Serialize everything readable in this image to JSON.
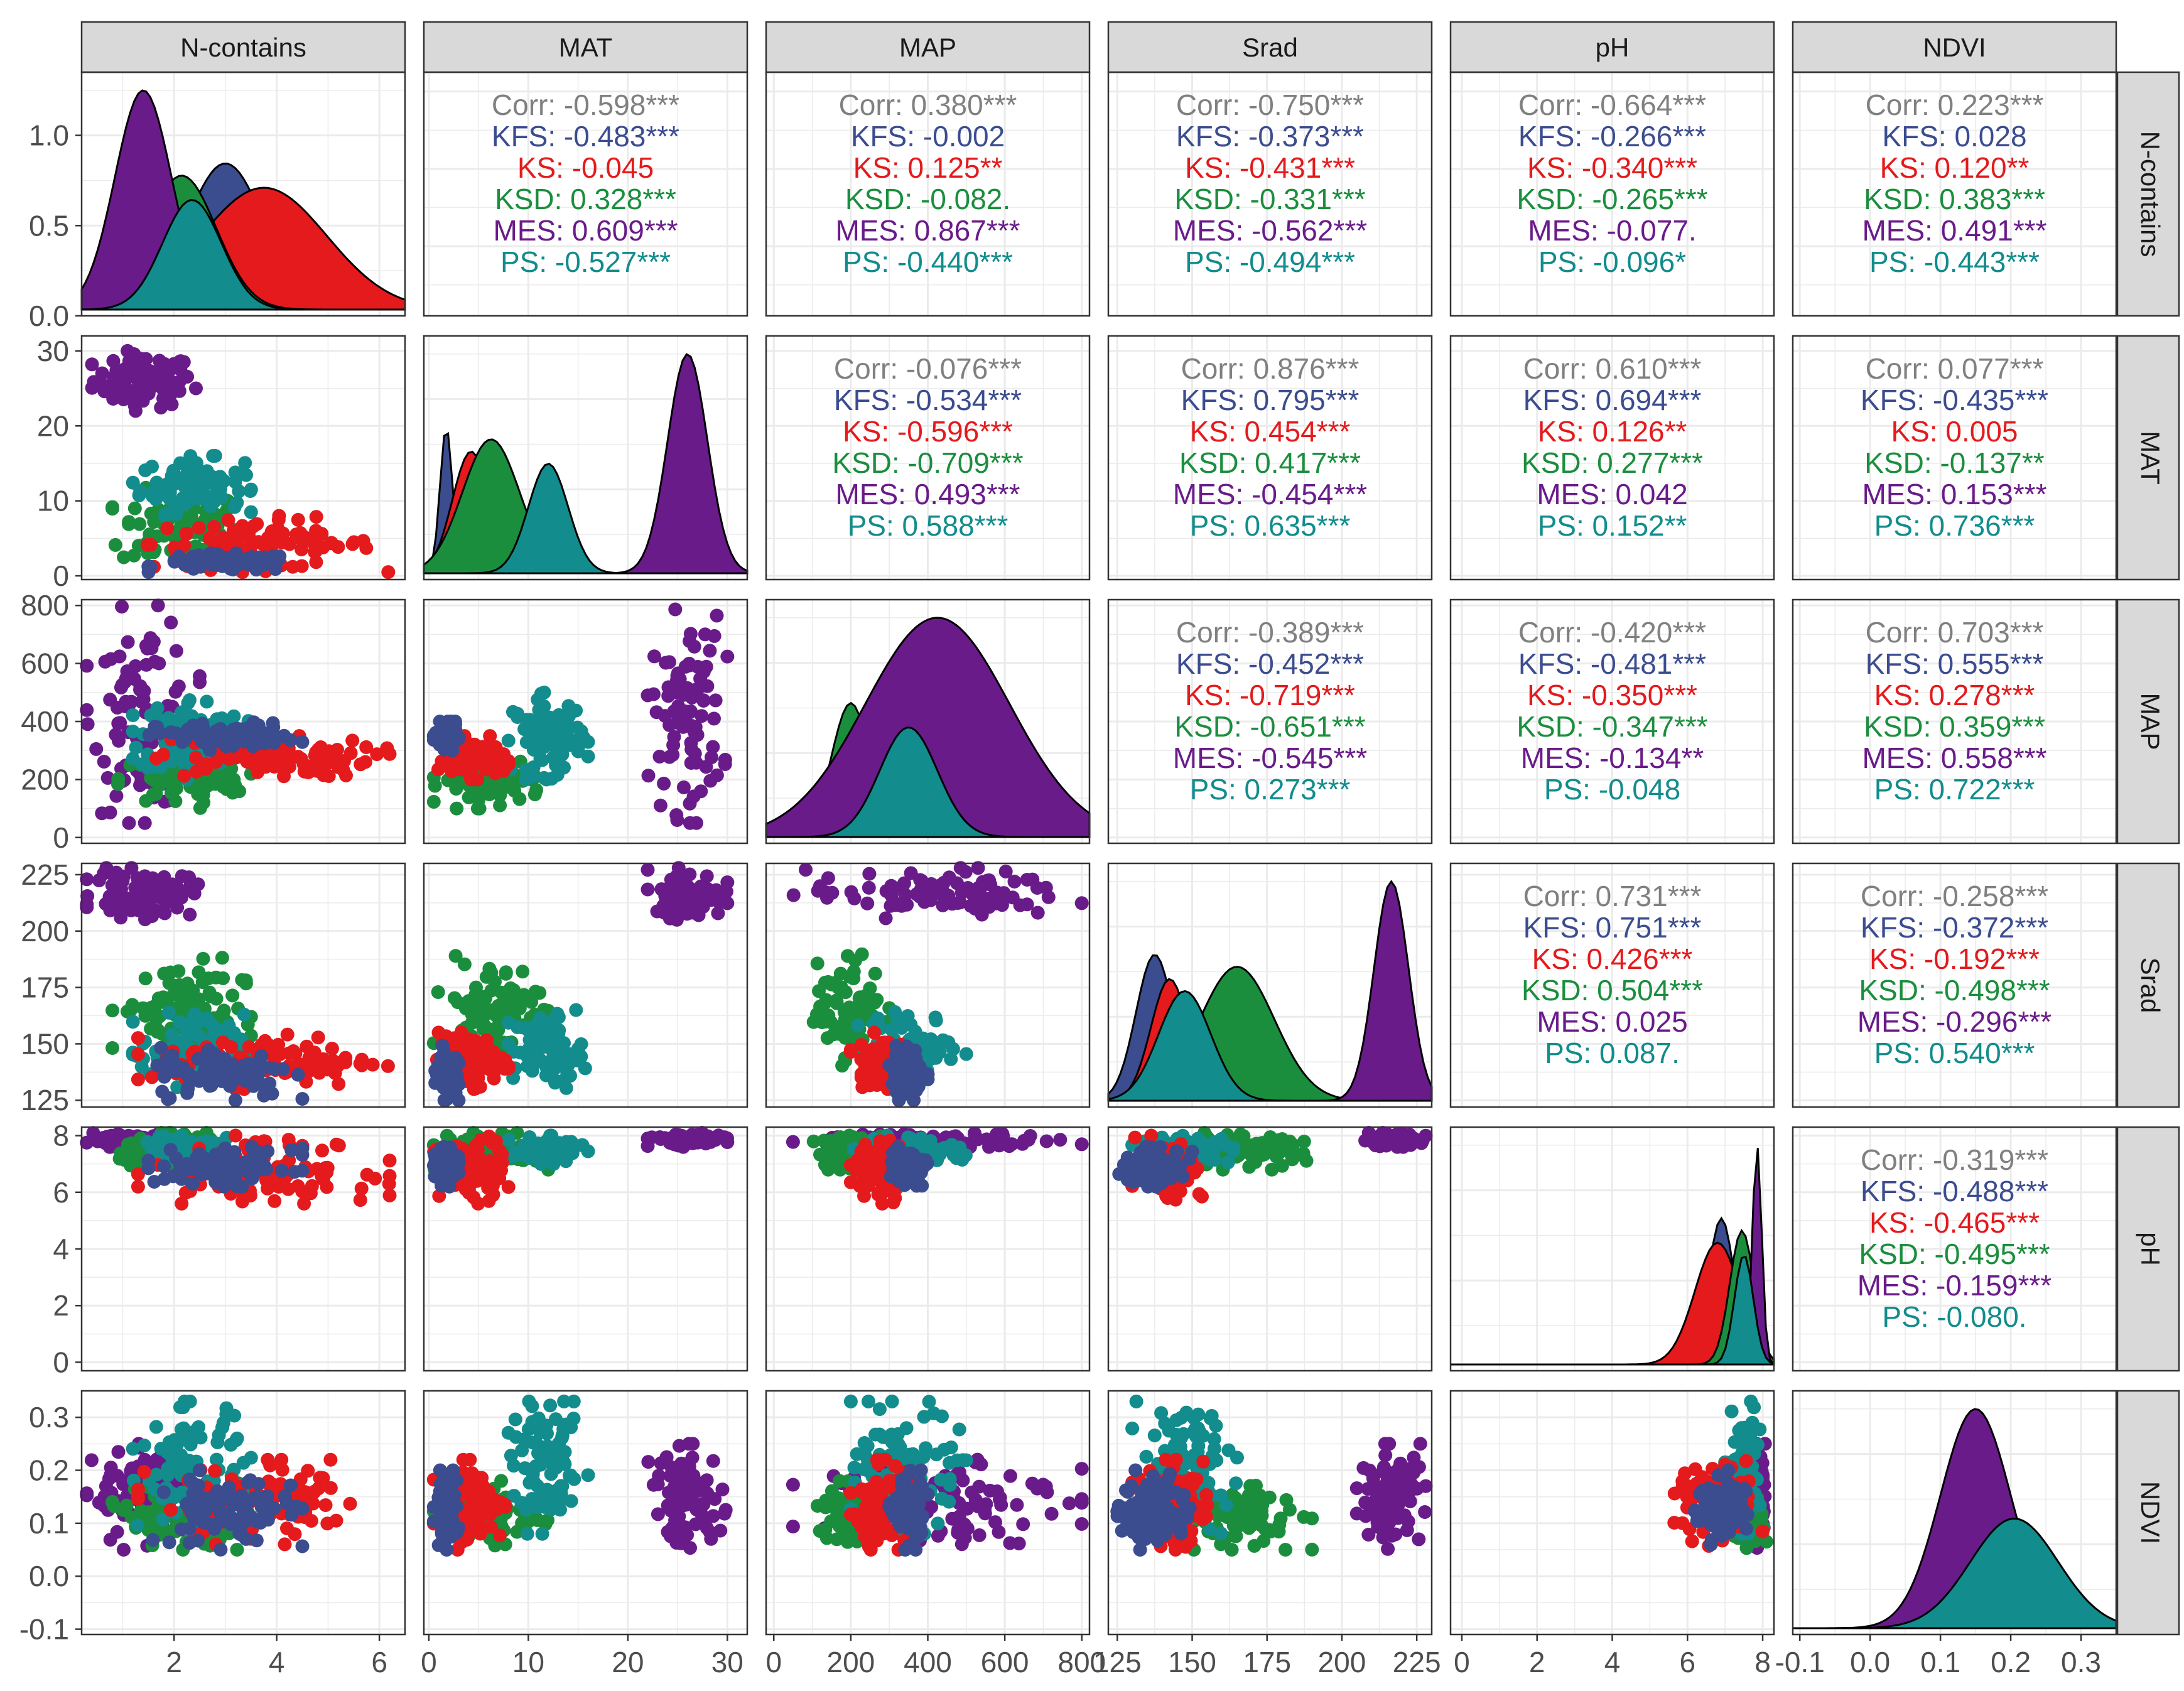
{
  "chart_data": {
    "type": "scatter",
    "colors": {
      "Corr": "#808080",
      "KFS": "#3B4C8F",
      "KS": "#E41A1C",
      "KSD": "#1B8E3E",
      "MES": "#6A1B8A",
      "PS": "#128C8C"
    },
    "groups": [
      "KFS",
      "KS",
      "KSD",
      "MES",
      "PS"
    ],
    "variables": [
      {
        "name": "N-contains",
        "range": [
          0.2,
          6.5
        ],
        "ticks": [
          2,
          4,
          6
        ],
        "tick_labels": [
          "2",
          "4",
          "6"
        ],
        "groups": {
          "KFS": [
            1.5,
            4.5
          ],
          "KS": [
            1.3,
            6.2
          ],
          "KSD": [
            0.8,
            3.5
          ],
          "MES": [
            0.3,
            2.5
          ],
          "PS": [
            1.2,
            3.5
          ]
        }
      },
      {
        "name": "MAT",
        "range": [
          -0.5,
          32
        ],
        "ticks": [
          0,
          10,
          20,
          30
        ],
        "tick_labels": [
          "0",
          "10",
          "20",
          "30"
        ],
        "groups": {
          "KFS": [
            0.5,
            3
          ],
          "KS": [
            0.5,
            8
          ],
          "KSD": [
            0.5,
            12
          ],
          "MES": [
            22,
            30
          ],
          "PS": [
            8,
            16
          ]
        }
      },
      {
        "name": "MAP",
        "range": [
          -20,
          820
        ],
        "ticks": [
          0,
          200,
          400,
          600,
          800
        ],
        "tick_labels": [
          "0",
          "200",
          "400",
          "600",
          "800"
        ],
        "groups": {
          "KFS": [
            300,
            400
          ],
          "KS": [
            200,
            350
          ],
          "KSD": [
            100,
            300
          ],
          "MES": [
            50,
            800
          ],
          "PS": [
            200,
            500
          ]
        }
      },
      {
        "name": "Srad",
        "range": [
          122,
          230
        ],
        "ticks": [
          125,
          150,
          175,
          200,
          225
        ],
        "tick_labels": [
          "125",
          "150",
          "175",
          "200",
          "225"
        ],
        "groups": {
          "KFS": [
            125,
            150
          ],
          "KS": [
            130,
            155
          ],
          "KSD": [
            140,
            190
          ],
          "MES": [
            205,
            228
          ],
          "PS": [
            130,
            165
          ]
        }
      },
      {
        "name": "pH",
        "range": [
          -0.3,
          8.3
        ],
        "ticks": [
          0,
          2,
          4,
          6,
          8
        ],
        "tick_labels": [
          "0",
          "2",
          "4",
          "6",
          "8"
        ],
        "groups": {
          "KFS": [
            6.2,
            7.6
          ],
          "KS": [
            5.6,
            8
          ],
          "KSD": [
            6.8,
            8.1
          ],
          "MES": [
            7.6,
            8.1
          ],
          "PS": [
            7,
            8
          ]
        }
      },
      {
        "name": "NDVI",
        "range": [
          -0.11,
          0.35
        ],
        "ticks": [
          -0.1,
          0.0,
          0.1,
          0.2,
          0.3
        ],
        "tick_labels": [
          "-0.1",
          "0.0",
          "0.1",
          "0.2",
          "0.3"
        ],
        "groups": {
          "KFS": [
            0.05,
            0.2
          ],
          "KS": [
            0.05,
            0.22
          ],
          "KSD": [
            0.05,
            0.18
          ],
          "MES": [
            0.05,
            0.25
          ],
          "PS": [
            0.08,
            0.33
          ]
        }
      }
    ],
    "density_ylabels": [
      "0.0",
      "0.5",
      "1.0"
    ],
    "density_yvalues": [
      0,
      0.5,
      1.0
    ],
    "density_ymax": 1.35,
    "correlations": [
      {
        "row": 0,
        "col": 1,
        "Corr": "-0.598***",
        "KFS": "-0.483***",
        "KS": "-0.045",
        "KSD": "0.328***",
        "MES": "0.609***",
        "PS": "-0.527***"
      },
      {
        "row": 0,
        "col": 2,
        "Corr": "0.380***",
        "KFS": "-0.002",
        "KS": "0.125**",
        "KSD": "-0.082.",
        "MES": "0.867***",
        "PS": "-0.440***"
      },
      {
        "row": 0,
        "col": 3,
        "Corr": "-0.750***",
        "KFS": "-0.373***",
        "KS": "-0.431***",
        "KSD": "-0.331***",
        "MES": "-0.562***",
        "PS": "-0.494***"
      },
      {
        "row": 0,
        "col": 4,
        "Corr": "-0.664***",
        "KFS": "-0.266***",
        "KS": "-0.340***",
        "KSD": "-0.265***",
        "MES": "-0.077.",
        "PS": "-0.096*"
      },
      {
        "row": 0,
        "col": 5,
        "Corr": "0.223***",
        "KFS": "0.028",
        "KS": "0.120**",
        "KSD": "0.383***",
        "MES": "0.491***",
        "PS": "-0.443***"
      },
      {
        "row": 1,
        "col": 2,
        "Corr": "-0.076***",
        "KFS": "-0.534***",
        "KS": "-0.596***",
        "KSD": "-0.709***",
        "MES": "0.493***",
        "PS": "0.588***"
      },
      {
        "row": 1,
        "col": 3,
        "Corr": "0.876***",
        "KFS": "0.795***",
        "KS": "0.454***",
        "KSD": "0.417***",
        "MES": "-0.454***",
        "PS": "0.635***"
      },
      {
        "row": 1,
        "col": 4,
        "Corr": "0.610***",
        "KFS": "0.694***",
        "KS": "0.126**",
        "KSD": "0.277***",
        "MES": "0.042",
        "PS": "0.152**"
      },
      {
        "row": 1,
        "col": 5,
        "Corr": "0.077***",
        "KFS": "-0.435***",
        "KS": "0.005",
        "KSD": "-0.137**",
        "MES": "0.153***",
        "PS": "0.736***"
      },
      {
        "row": 2,
        "col": 3,
        "Corr": "-0.389***",
        "KFS": "-0.452***",
        "KS": "-0.719***",
        "KSD": "-0.651***",
        "MES": "-0.545***",
        "PS": "0.273***"
      },
      {
        "row": 2,
        "col": 4,
        "Corr": "-0.420***",
        "KFS": "-0.481***",
        "KS": "-0.350***",
        "KSD": "-0.347***",
        "MES": "-0.134**",
        "PS": "-0.048"
      },
      {
        "row": 2,
        "col": 5,
        "Corr": "0.703***",
        "KFS": "0.555***",
        "KS": "0.278***",
        "KSD": "0.359***",
        "MES": "0.558***",
        "PS": "0.722***"
      },
      {
        "row": 3,
        "col": 4,
        "Corr": "0.731***",
        "KFS": "0.751***",
        "KS": "0.426***",
        "KSD": "0.504***",
        "MES": "0.025",
        "PS": "0.087."
      },
      {
        "row": 3,
        "col": 5,
        "Corr": "-0.258***",
        "KFS": "-0.372***",
        "KS": "-0.192***",
        "KSD": "-0.498***",
        "MES": "-0.296***",
        "PS": "0.540***"
      },
      {
        "row": 4,
        "col": 5,
        "Corr": "-0.319***",
        "KFS": "-0.488***",
        "KS": "-0.465***",
        "KSD": "-0.495***",
        "MES": "-0.159***",
        "PS": "-0.080."
      }
    ]
  }
}
